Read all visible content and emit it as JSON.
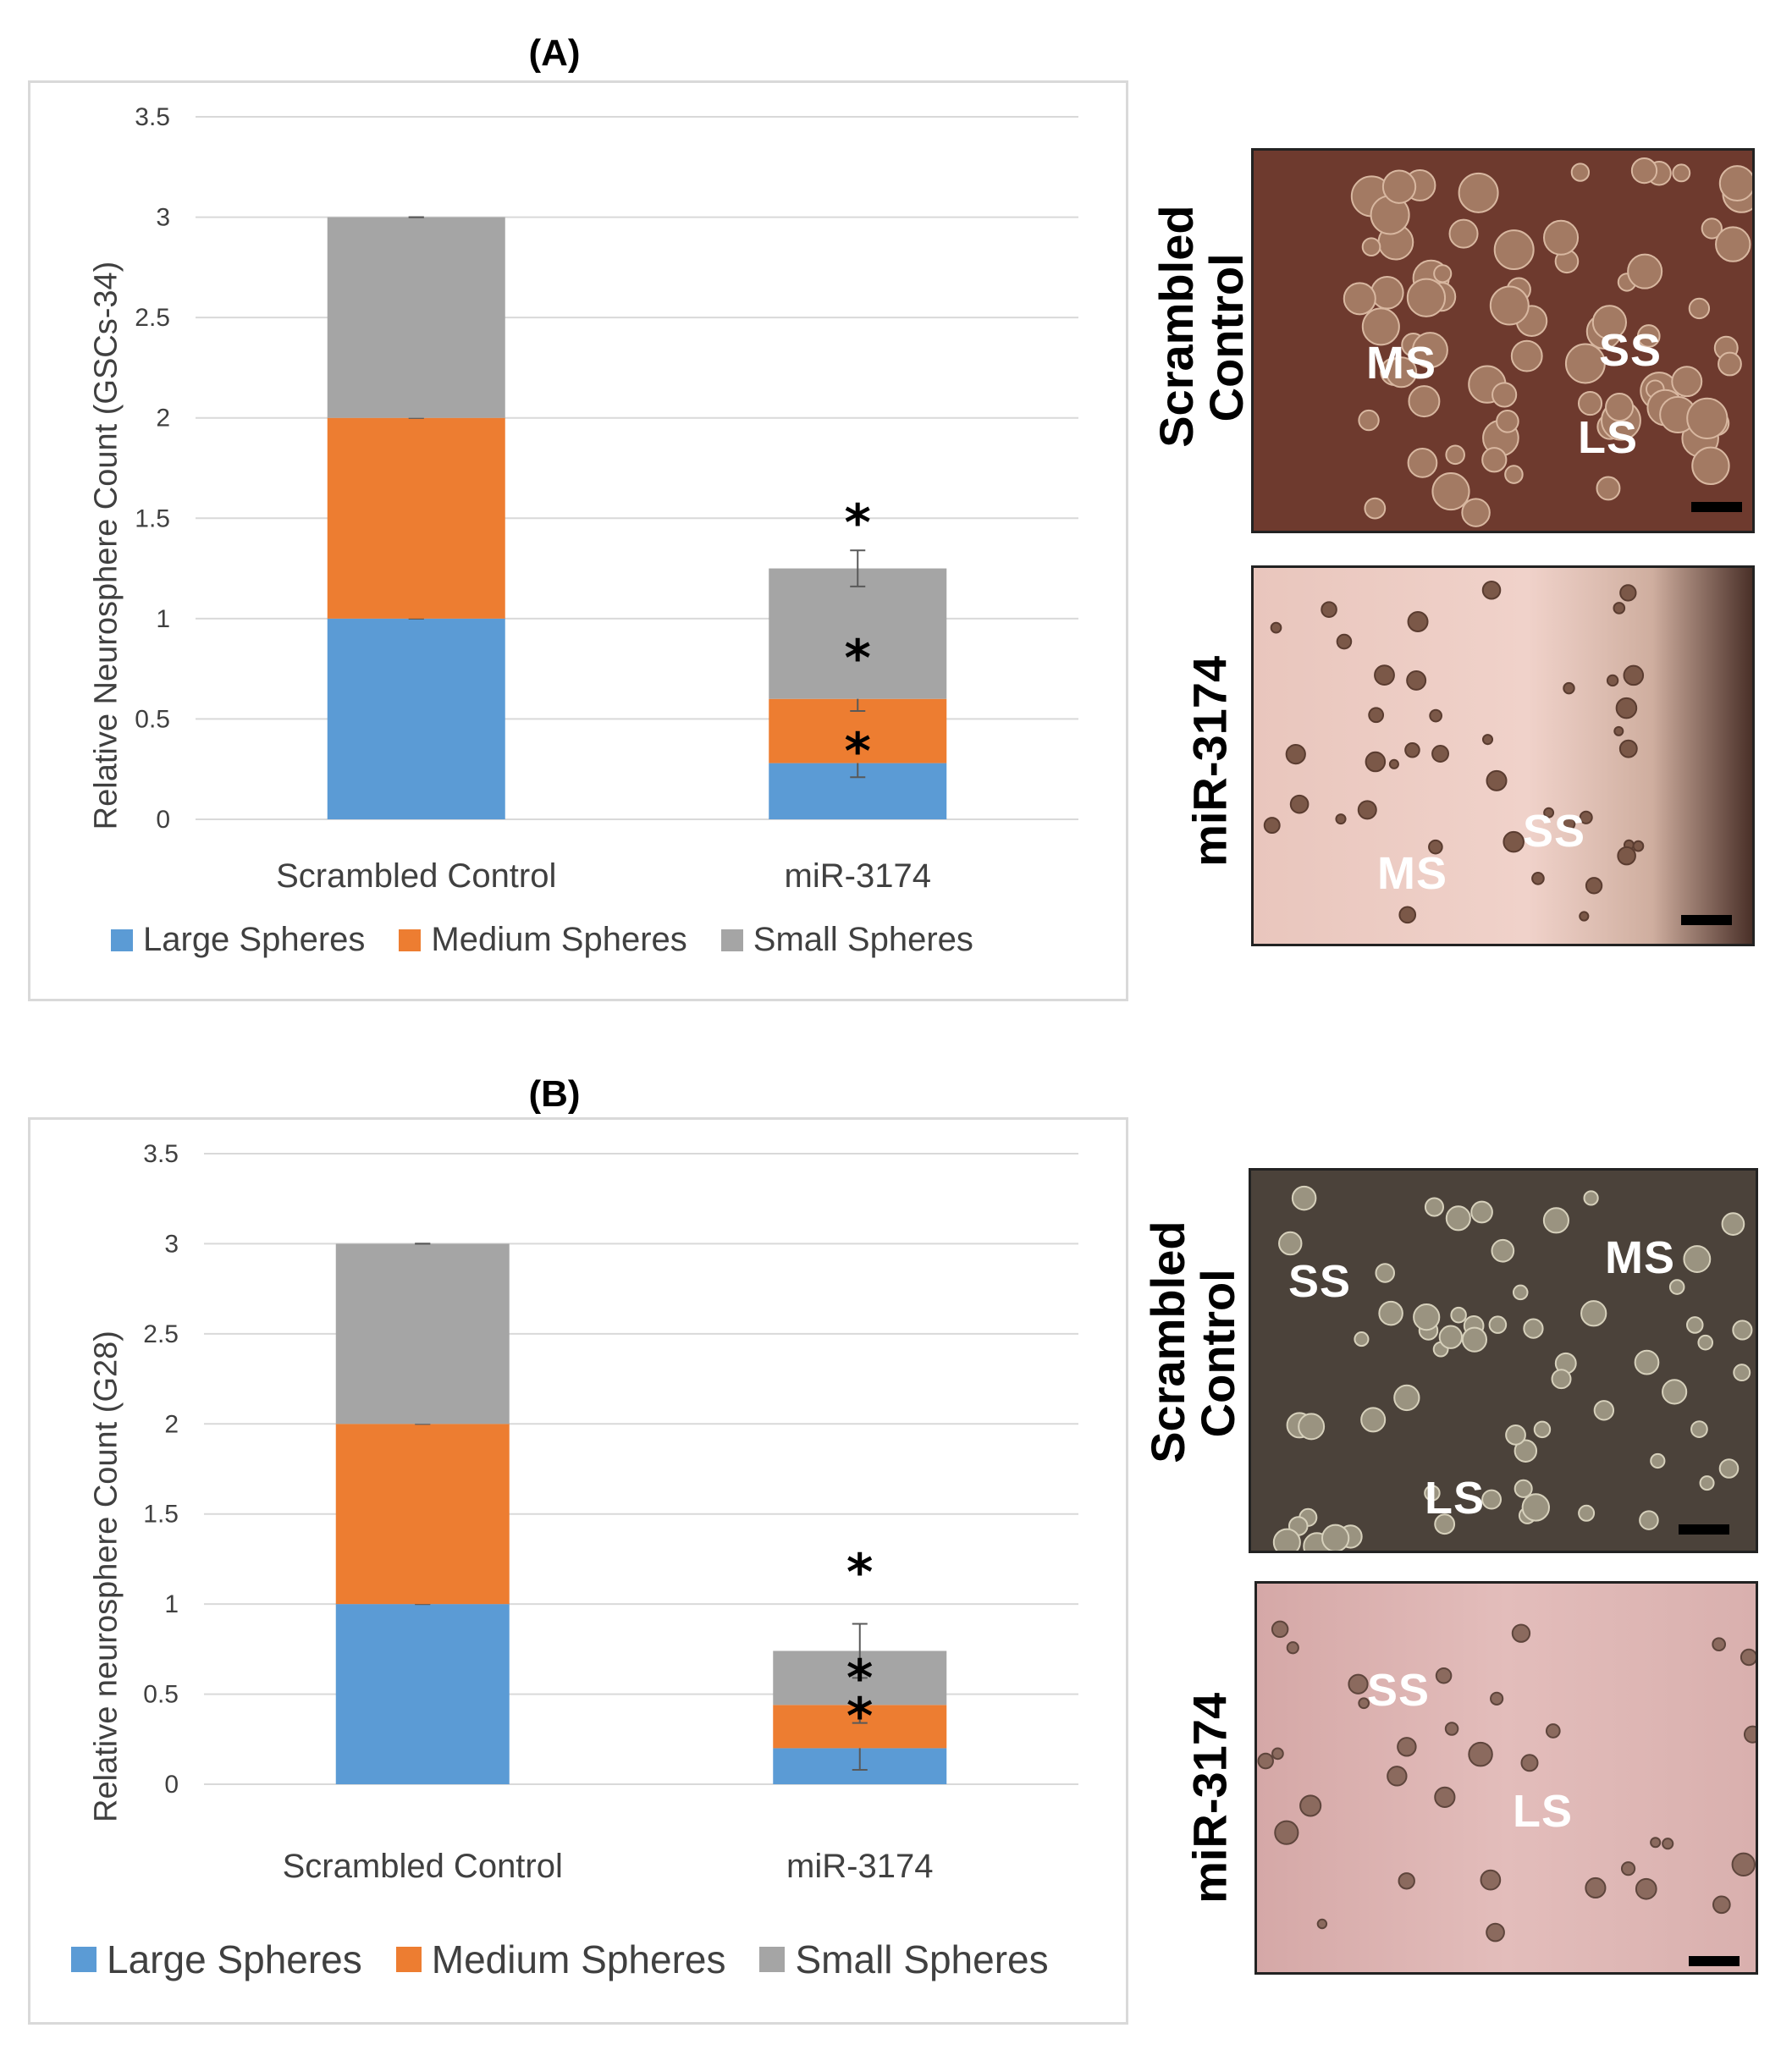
{
  "colors": {
    "large": "#5b9bd5",
    "medium": "#ed7d31",
    "small": "#a5a5a5",
    "grid": "#d9d9d9",
    "err": "#595959"
  },
  "chart_data": [
    {
      "type": "bar",
      "stacked": true,
      "title": "(A)",
      "ylabel": "Relative Neurosphere Count (GSCs-34)",
      "xlabel": "",
      "ylim": [
        0,
        3.5
      ],
      "yticks": [
        0,
        0.5,
        1,
        1.5,
        2,
        2.5,
        3,
        3.5
      ],
      "tick_labels": [
        "0",
        "0.5",
        "1",
        "1.5",
        "2",
        "2.5",
        "3",
        "3.5"
      ],
      "categories": [
        "Scrambled Control",
        "miR-3174"
      ],
      "series": [
        {
          "name": "Large Spheres",
          "values": [
            1.0,
            0.28
          ],
          "error": [
            0.0,
            0.07
          ]
        },
        {
          "name": "Medium Spheres",
          "values": [
            1.0,
            0.32
          ],
          "error": [
            0.0,
            0.06
          ]
        },
        {
          "name": "Small Spheres",
          "values": [
            1.0,
            0.65
          ],
          "error": [
            0.0,
            0.09
          ]
        }
      ],
      "annotations": [
        "*",
        "*",
        "*"
      ],
      "legend": "bottom"
    },
    {
      "type": "bar",
      "stacked": true,
      "title": "(B)",
      "ylabel": "Relative neurosphere Count (G28)",
      "xlabel": "",
      "ylim": [
        0,
        3.5
      ],
      "yticks": [
        0,
        0.5,
        1,
        1.5,
        2,
        2.5,
        3,
        3.5
      ],
      "tick_labels": [
        "0",
        "0.5",
        "1",
        "1.5",
        "2",
        "2.5",
        "3",
        "3.5"
      ],
      "categories": [
        "Scrambled Control",
        "miR-3174"
      ],
      "series": [
        {
          "name": "Large Spheres",
          "values": [
            1.0,
            0.2
          ],
          "error": [
            0.0,
            0.12
          ]
        },
        {
          "name": "Medium Spheres",
          "values": [
            1.0,
            0.24
          ],
          "error": [
            0.0,
            0.1
          ]
        },
        {
          "name": "Small Spheres",
          "values": [
            1.0,
            0.3
          ],
          "error": [
            0.0,
            0.15
          ]
        }
      ],
      "annotations": [
        "*",
        "*",
        "*"
      ],
      "legend": "bottom"
    }
  ],
  "images": [
    {
      "row_label": "Scrambled Control",
      "labels": [
        "MS",
        "SS",
        "LS"
      ]
    },
    {
      "row_label": "miR-3174",
      "labels": [
        "SS",
        "MS"
      ]
    },
    {
      "row_label": "Scrambled Control",
      "labels": [
        "SS",
        "MS",
        "LS"
      ]
    },
    {
      "row_label": "miR-3174",
      "labels": [
        "SS",
        "LS"
      ]
    }
  ]
}
